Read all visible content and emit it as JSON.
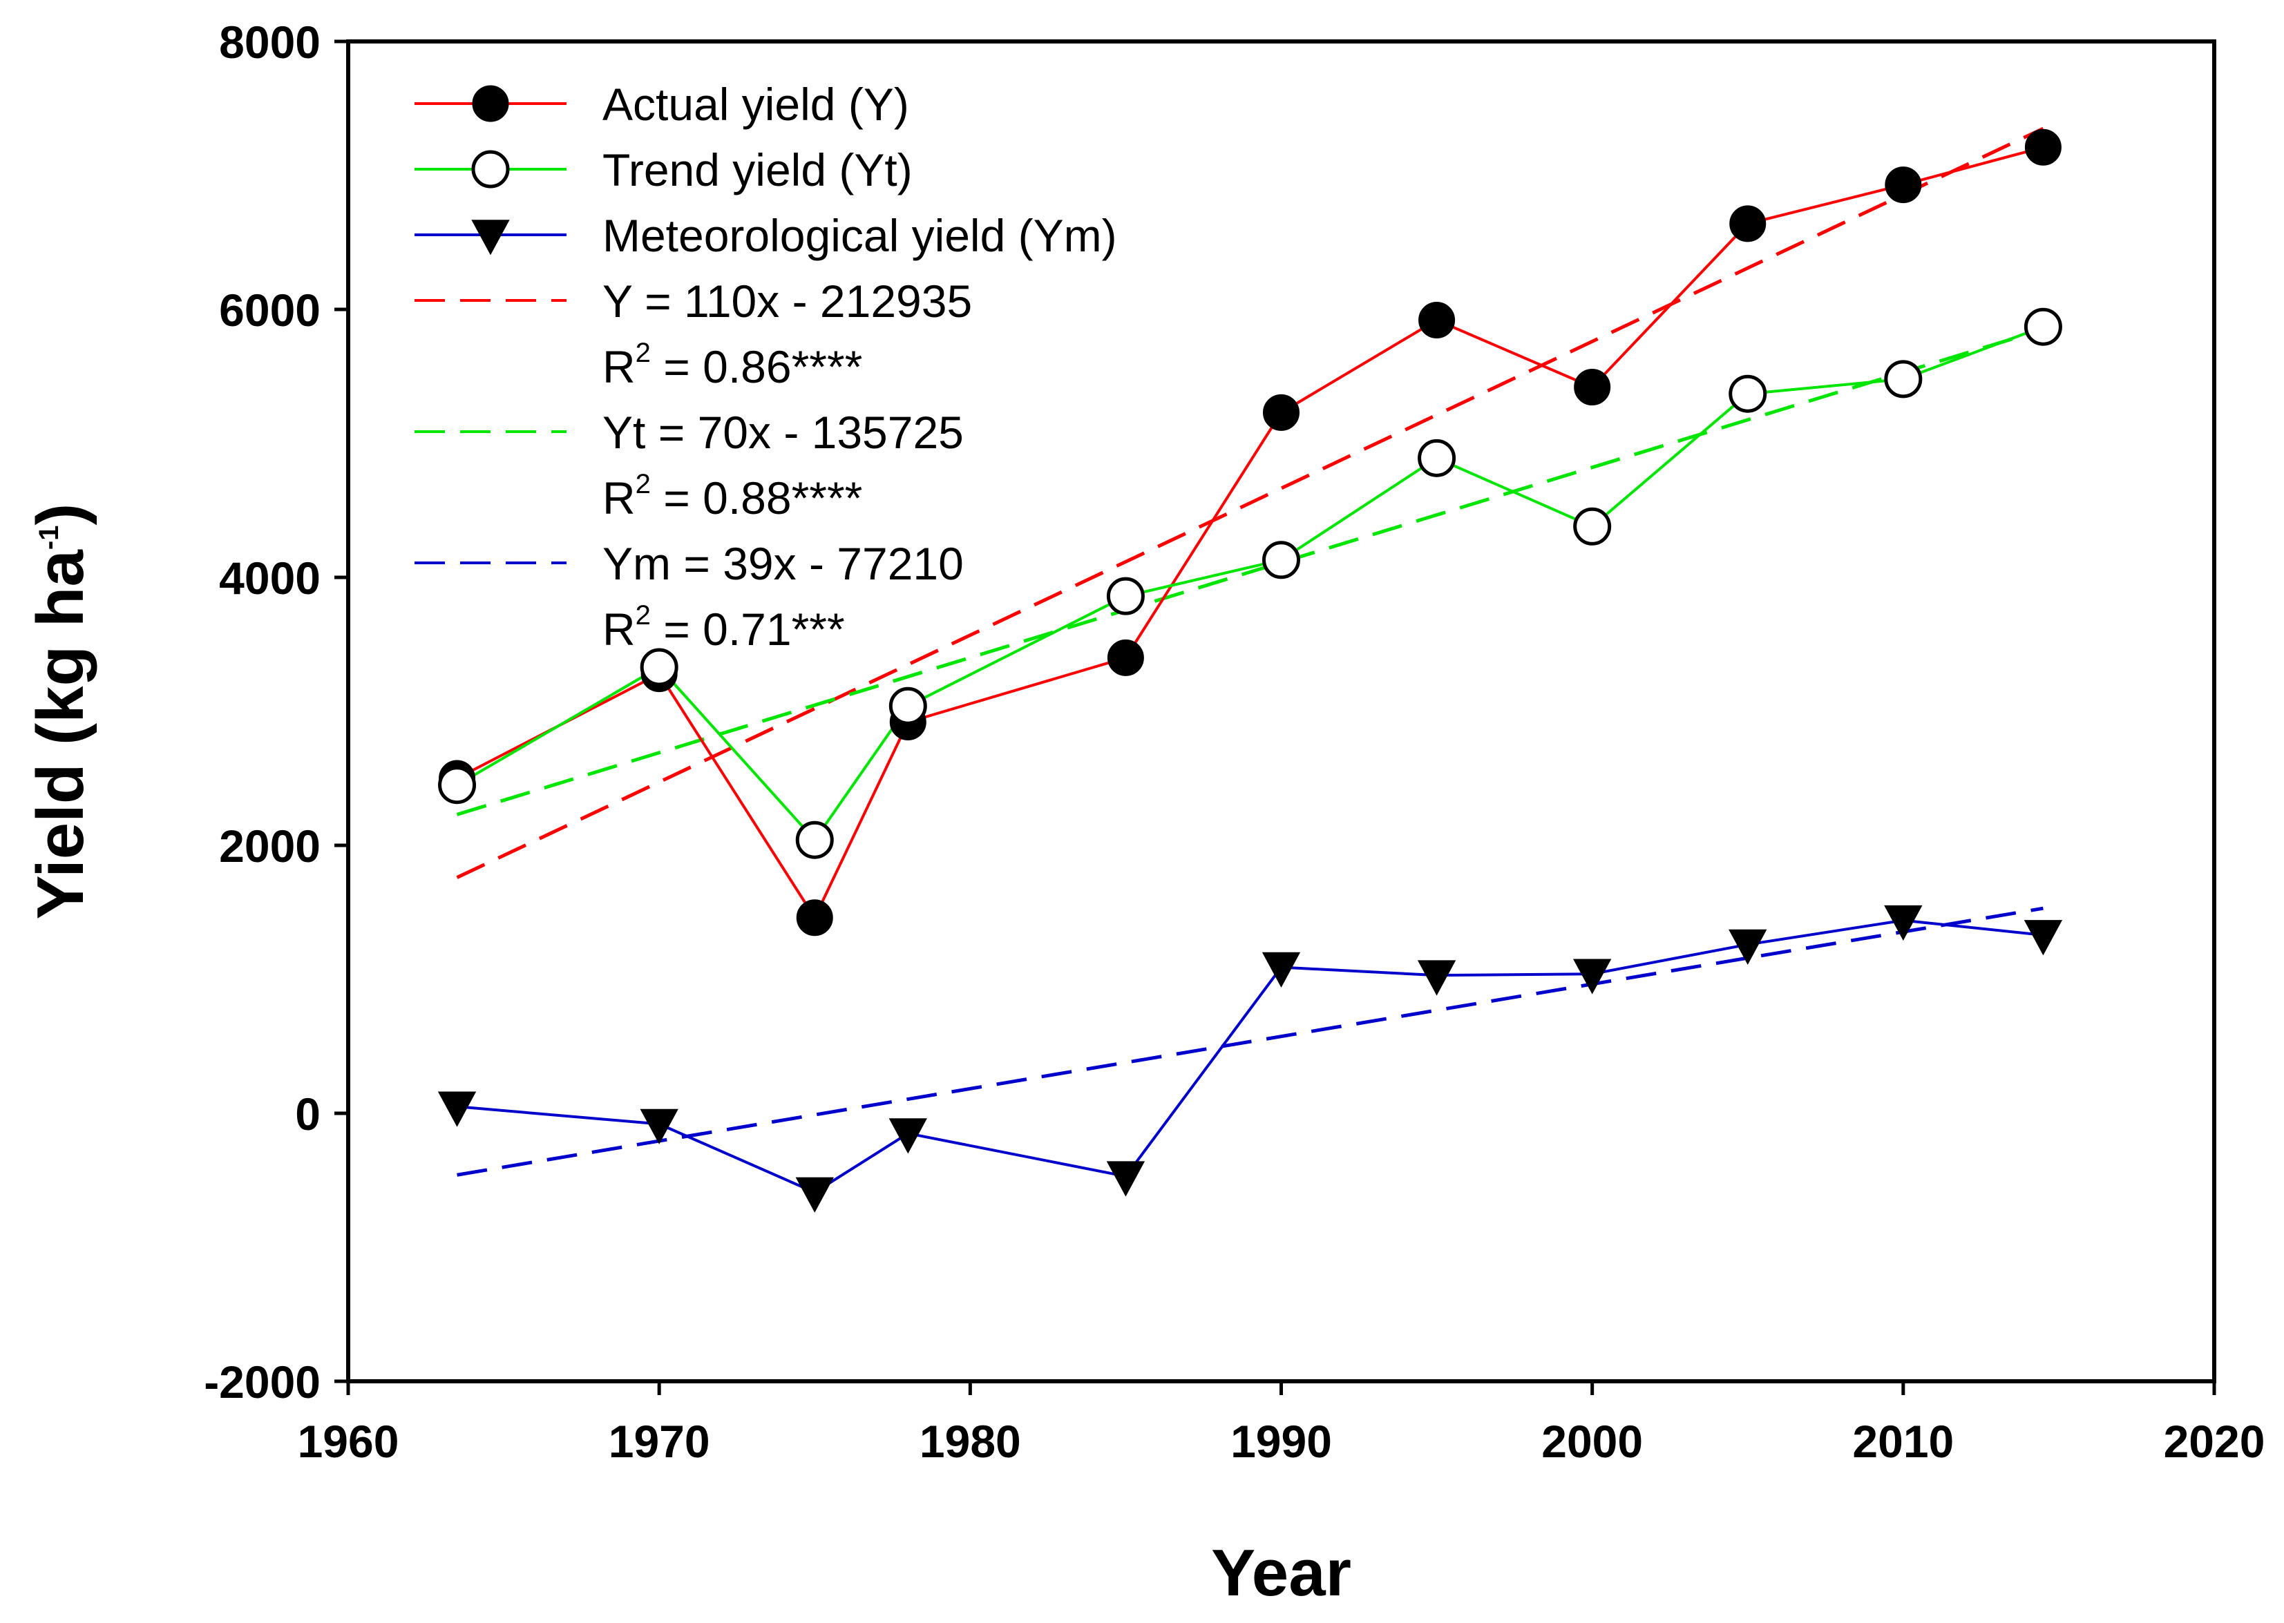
{
  "chart_data": {
    "type": "line",
    "xlabel": "Year",
    "ylabel_main": "Yield (kg ha",
    "ylabel_sup": "-1",
    "ylabel_close": ")",
    "xlim": [
      1960,
      2020
    ],
    "ylim": [
      -2000,
      8000
    ],
    "xticks": [
      1960,
      1970,
      1980,
      1990,
      2000,
      2010,
      2020
    ],
    "yticks": [
      -2000,
      0,
      2000,
      4000,
      6000,
      8000
    ],
    "x": [
      1963.5,
      1970,
      1975,
      1978,
      1985,
      1990,
      1995,
      2000,
      2005,
      2010,
      2014.5
    ],
    "series": [
      {
        "name": "Actual yield (Y)",
        "color": "#ff0000",
        "marker": "filled-circle",
        "values": [
          2500,
          3280,
          1460,
          2920,
          3400,
          5230,
          5920,
          5420,
          6640,
          6930,
          7210
        ]
      },
      {
        "name": "Trend yield (Yt)",
        "color": "#00e600",
        "marker": "open-circle",
        "values": [
          2450,
          3330,
          2040,
          3040,
          3860,
          4130,
          4890,
          4380,
          5370,
          5480,
          5870
        ]
      },
      {
        "name": "Meteorological yield (Ym)",
        "color": "#0000cc",
        "marker": "filled-triangle-down",
        "values": [
          50,
          -80,
          -590,
          -150,
          -470,
          1090,
          1030,
          1040,
          1260,
          1440,
          1330
        ]
      }
    ],
    "fits": [
      {
        "name": "Y = 110x - 212935",
        "r2_label": "R",
        "r2_sup": "2",
        "r2_value": " = 0.86****",
        "color": "#ff0000",
        "x_range": [
          1963.5,
          2014.5
        ],
        "y_range": [
          1760,
          7350
        ]
      },
      {
        "name": "Yt = 70x - 135725",
        "r2_label": "R",
        "r2_sup": "2",
        "r2_value": " = 0.88****",
        "color": "#00e600",
        "x_range": [
          1963.5,
          2014.5
        ],
        "y_range": [
          2230,
          5850
        ]
      },
      {
        "name": "Ym = 39x - 77210",
        "r2_label": "R",
        "r2_sup": "2",
        "r2_value": " = 0.71***",
        "color": "#0000cc",
        "x_range": [
          1963.5,
          2014.5
        ],
        "y_range": [
          -460,
          1530
        ]
      }
    ],
    "legend_position": "top-left"
  }
}
